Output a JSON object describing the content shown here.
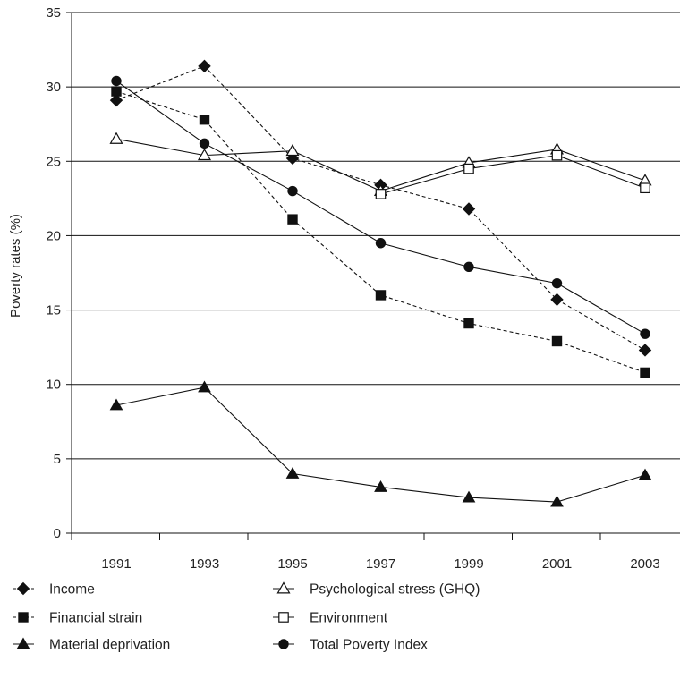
{
  "chart_data": {
    "type": "line",
    "title": "",
    "xlabel": "",
    "ylabel": "Poverty rates (%)",
    "categories": [
      "1991",
      "1993",
      "1995",
      "1997",
      "1999",
      "2001",
      "2003"
    ],
    "yticks": [
      "0",
      "5",
      "10",
      "15",
      "20",
      "25",
      "30",
      "35"
    ],
    "ylim": [
      0,
      35
    ],
    "grid": "horizontal",
    "legend_position": "bottom",
    "series": [
      {
        "name": "Income",
        "marker": "diamond-filled",
        "line": "dashed",
        "values": [
          29.1,
          31.4,
          25.2,
          23.4,
          21.8,
          15.7,
          12.3
        ]
      },
      {
        "name": "Financial strain",
        "marker": "square-filled",
        "line": "dashed",
        "values": [
          29.7,
          27.8,
          21.1,
          16.0,
          14.1,
          12.9,
          10.8
        ]
      },
      {
        "name": "Material deprivation",
        "marker": "triangle-filled",
        "line": "solid",
        "values": [
          8.6,
          9.8,
          4.0,
          3.1,
          2.4,
          2.1,
          3.9
        ]
      },
      {
        "name": "Psychological stress (GHQ)",
        "marker": "triangle-open",
        "line": "solid",
        "values": [
          26.5,
          25.4,
          25.7,
          23.0,
          24.9,
          25.8,
          23.7
        ]
      },
      {
        "name": "Environment",
        "marker": "square-open",
        "line": "solid",
        "values": [
          null,
          null,
          null,
          22.8,
          24.5,
          25.4,
          23.2
        ]
      },
      {
        "name": "Total Poverty Index",
        "marker": "circle-filled",
        "line": "solid",
        "values": [
          30.4,
          26.2,
          23.0,
          19.5,
          17.9,
          16.8,
          13.4
        ]
      }
    ]
  }
}
